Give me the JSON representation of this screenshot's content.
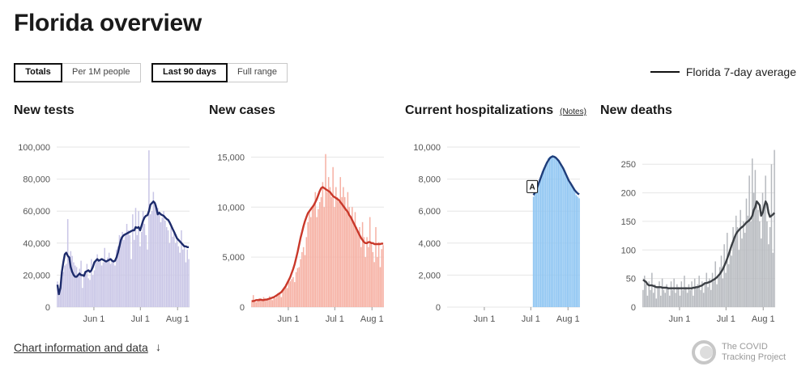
{
  "page": {
    "title": "Florida overview"
  },
  "toggles": {
    "units": [
      {
        "label": "Totals",
        "active": true
      },
      {
        "label": "Per 1M people",
        "active": false
      }
    ],
    "range": [
      {
        "label": "Last 90 days",
        "active": true
      },
      {
        "label": "Full range",
        "active": false
      }
    ]
  },
  "legend": {
    "label": "Florida 7-day average",
    "color": "#111111"
  },
  "footer": {
    "link_label": "Chart information and data",
    "arrow_icon": "arrow-down-icon"
  },
  "brand": {
    "line1": "The COVID",
    "line2": "Tracking Project",
    "logo_icon": "covid-tracking-logo-icon"
  },
  "chart_data": [
    {
      "type": "bar",
      "title": "New tests",
      "x_ticks": [
        "Jun 1",
        "Jul 1",
        "Aug 1"
      ],
      "y_ticks": [
        "0",
        "20,000",
        "40,000",
        "60,000",
        "80,000",
        "100,000"
      ],
      "ylim": [
        0,
        100000
      ],
      "bar_color": "#c9c6e6",
      "line_color": "#1d2b6b",
      "values": [
        16000,
        7000,
        12000,
        20000,
        22000,
        26000,
        27000,
        55000,
        30000,
        35000,
        32000,
        28000,
        26000,
        25000,
        20000,
        24000,
        29000,
        12000,
        19000,
        22000,
        27000,
        18000,
        17000,
        30000,
        20000,
        23000,
        28000,
        33000,
        29000,
        30000,
        26000,
        28000,
        37000,
        28000,
        31000,
        34000,
        27000,
        30000,
        28000,
        26000,
        36000,
        38000,
        45000,
        44000,
        47000,
        42000,
        46000,
        52000,
        48000,
        45000,
        30000,
        58000,
        42000,
        62000,
        45000,
        60000,
        38000,
        47000,
        60000,
        52000,
        45000,
        36000,
        98000,
        58000,
        60000,
        72000,
        66000,
        64000,
        62000,
        58000,
        53000,
        56000,
        60000,
        54000,
        50000,
        48000,
        40000,
        52000,
        44000,
        46000,
        40000,
        42000,
        38000,
        34000,
        48000,
        36000,
        38000,
        28000,
        36000,
        30000
      ],
      "average": [
        14000,
        8000,
        12000,
        22000,
        28000,
        33000,
        34000,
        32000,
        31000,
        25000,
        22000,
        20000,
        19000,
        19000,
        20000,
        21000,
        20000,
        20000,
        19500,
        22000,
        22500,
        23000,
        22000,
        23000,
        25000,
        28000,
        29000,
        30000,
        29000,
        29500,
        30000,
        29500,
        29000,
        28500,
        29000,
        29500,
        30000,
        29000,
        28500,
        29000,
        31000,
        34000,
        38000,
        42000,
        44000,
        45000,
        45500,
        46000,
        46500,
        47000,
        47500,
        48000,
        48000,
        50000,
        49500,
        50000,
        48000,
        51000,
        54000,
        56000,
        57000,
        57500,
        60000,
        64000,
        65000,
        66000,
        65000,
        62000,
        58000,
        59000,
        58000,
        57500,
        57000,
        56000,
        55000,
        54500,
        53000,
        51000,
        49000,
        47000,
        45000,
        43000,
        42000,
        41000,
        40000,
        39000,
        38000,
        38000,
        37500,
        37500
      ]
    },
    {
      "type": "bar",
      "title": "New cases",
      "x_ticks": [
        "Jun 1",
        "Jul 1",
        "Aug 1"
      ],
      "y_ticks": [
        "0",
        "5,000",
        "10,000",
        "15,000"
      ],
      "ylim": [
        0,
        16000
      ],
      "bar_color": "#f6b1a4",
      "line_color": "#c9382a",
      "values": [
        700,
        1200,
        600,
        500,
        800,
        900,
        700,
        600,
        1000,
        800,
        700,
        900,
        1100,
        800,
        700,
        1000,
        900,
        1200,
        1300,
        1400,
        1000,
        1600,
        1800,
        2300,
        1900,
        2500,
        2600,
        2800,
        3000,
        2500,
        3500,
        3900,
        4000,
        4800,
        5500,
        6000,
        5200,
        7000,
        8500,
        9500,
        9000,
        10000,
        10200,
        11500,
        9000,
        9800,
        10500,
        11000,
        12500,
        10000,
        15300,
        11500,
        13000,
        12000,
        11000,
        14000,
        10000,
        12000,
        11000,
        10500,
        13000,
        11000,
        12000,
        11000,
        9500,
        11500,
        10000,
        9000,
        10000,
        8500,
        9500,
        8000,
        7500,
        8000,
        6000,
        8500,
        7000,
        5000,
        7000,
        6000,
        9000,
        6500,
        5500,
        4500,
        8000,
        5000,
        6500,
        4000,
        5800,
        6200
      ],
      "average": [
        600,
        600,
        650,
        700,
        700,
        700,
        750,
        700,
        700,
        750,
        750,
        800,
        850,
        900,
        950,
        1000,
        1100,
        1200,
        1300,
        1400,
        1500,
        1700,
        1900,
        2100,
        2400,
        2700,
        3000,
        3400,
        3800,
        4300,
        4900,
        5500,
        6200,
        6900,
        7500,
        8100,
        8600,
        9000,
        9400,
        9600,
        9800,
        10000,
        10200,
        10500,
        10800,
        11200,
        11600,
        11900,
        12000,
        11900,
        11800,
        11700,
        11600,
        11500,
        11300,
        11100,
        11000,
        10900,
        10800,
        10700,
        10500,
        10300,
        10100,
        9900,
        9700,
        9500,
        9200,
        9000,
        8700,
        8400,
        8100,
        7800,
        7500,
        7200,
        6900,
        6700,
        6500,
        6400,
        6400,
        6500,
        6500,
        6400,
        6400,
        6300,
        6300,
        6300,
        6300,
        6300,
        6350,
        6350
      ]
    },
    {
      "type": "bar",
      "title": "Current hospitalizations",
      "x_ticks": [
        "Jun 1",
        "Jul 1",
        "Aug 1"
      ],
      "y_ticks": [
        "0",
        "2,000",
        "4,000",
        "6,000",
        "8,000",
        "10,000"
      ],
      "ylim": [
        0,
        10000
      ],
      "bar_color": "#8ec5f2",
      "line_color": "#1f3d7a",
      "annotation": {
        "label": "A",
        "index": 58
      },
      "values": [
        null,
        null,
        null,
        null,
        null,
        null,
        null,
        null,
        null,
        null,
        null,
        null,
        null,
        null,
        null,
        null,
        null,
        null,
        null,
        null,
        null,
        null,
        null,
        null,
        null,
        null,
        null,
        null,
        null,
        null,
        null,
        null,
        null,
        null,
        null,
        null,
        null,
        null,
        null,
        null,
        null,
        null,
        null,
        null,
        null,
        null,
        null,
        null,
        null,
        null,
        null,
        null,
        null,
        null,
        null,
        null,
        null,
        null,
        6900,
        7100,
        7300,
        7600,
        7900,
        8200,
        8500,
        8700,
        8900,
        9100,
        9300,
        9400,
        9450,
        9500,
        9450,
        9400,
        9300,
        9200,
        9000,
        8900,
        8700,
        8500,
        8300,
        8100,
        7900,
        7700,
        7600,
        7400,
        7200,
        7000,
        6900,
        6800
      ],
      "average": [
        null,
        null,
        null,
        null,
        null,
        null,
        null,
        null,
        null,
        null,
        null,
        null,
        null,
        null,
        null,
        null,
        null,
        null,
        null,
        null,
        null,
        null,
        null,
        null,
        null,
        null,
        null,
        null,
        null,
        null,
        null,
        null,
        null,
        null,
        null,
        null,
        null,
        null,
        null,
        null,
        null,
        null,
        null,
        null,
        null,
        null,
        null,
        null,
        null,
        null,
        null,
        null,
        null,
        null,
        null,
        null,
        null,
        null,
        7000,
        7150,
        7350,
        7600,
        7850,
        8100,
        8350,
        8600,
        8800,
        9000,
        9150,
        9300,
        9380,
        9420,
        9400,
        9350,
        9250,
        9150,
        9000,
        8850,
        8700,
        8500,
        8300,
        8100,
        7900,
        7750,
        7600,
        7450,
        7300,
        7200,
        7100,
        7050
      ]
    },
    {
      "type": "bar",
      "title": "New deaths",
      "x_ticks": [
        "Jun 1",
        "Jul 1",
        "Aug 1"
      ],
      "y_ticks": [
        "0",
        "50",
        "100",
        "150",
        "200",
        "250"
      ],
      "ylim": [
        0,
        280
      ],
      "bar_color": "#b7babf",
      "line_color": "#3b3f44",
      "values": [
        30,
        55,
        40,
        20,
        45,
        30,
        60,
        25,
        40,
        15,
        35,
        45,
        20,
        50,
        30,
        25,
        40,
        35,
        20,
        45,
        30,
        50,
        25,
        40,
        35,
        20,
        45,
        30,
        55,
        35,
        25,
        40,
        30,
        45,
        20,
        50,
        35,
        40,
        55,
        30,
        45,
        25,
        40,
        60,
        35,
        50,
        30,
        60,
        45,
        80,
        40,
        55,
        70,
        90,
        50,
        110,
        60,
        130,
        75,
        100,
        90,
        140,
        120,
        160,
        140,
        100,
        170,
        120,
        150,
        130,
        190,
        160,
        230,
        150,
        260,
        200,
        240,
        180,
        170,
        150,
        120,
        200,
        180,
        230,
        150,
        110,
        140,
        250,
        95,
        275
      ],
      "average": [
        48,
        46,
        44,
        40,
        38,
        38,
        38,
        37,
        36,
        35,
        35,
        35,
        35,
        34,
        34,
        34,
        34,
        33,
        33,
        33,
        33,
        33,
        33,
        33,
        33,
        33,
        33,
        33,
        33,
        33,
        33,
        33,
        33,
        33,
        34,
        34,
        35,
        35,
        36,
        37,
        38,
        40,
        42,
        42,
        43,
        44,
        45,
        47,
        48,
        50,
        52,
        55,
        58,
        62,
        66,
        72,
        78,
        85,
        92,
        100,
        108,
        115,
        122,
        128,
        132,
        135,
        138,
        140,
        142,
        145,
        148,
        150,
        152,
        155,
        160,
        170,
        175,
        185,
        182,
        178,
        160,
        165,
        175,
        185,
        180,
        165,
        158,
        160,
        162,
        165
      ]
    }
  ]
}
